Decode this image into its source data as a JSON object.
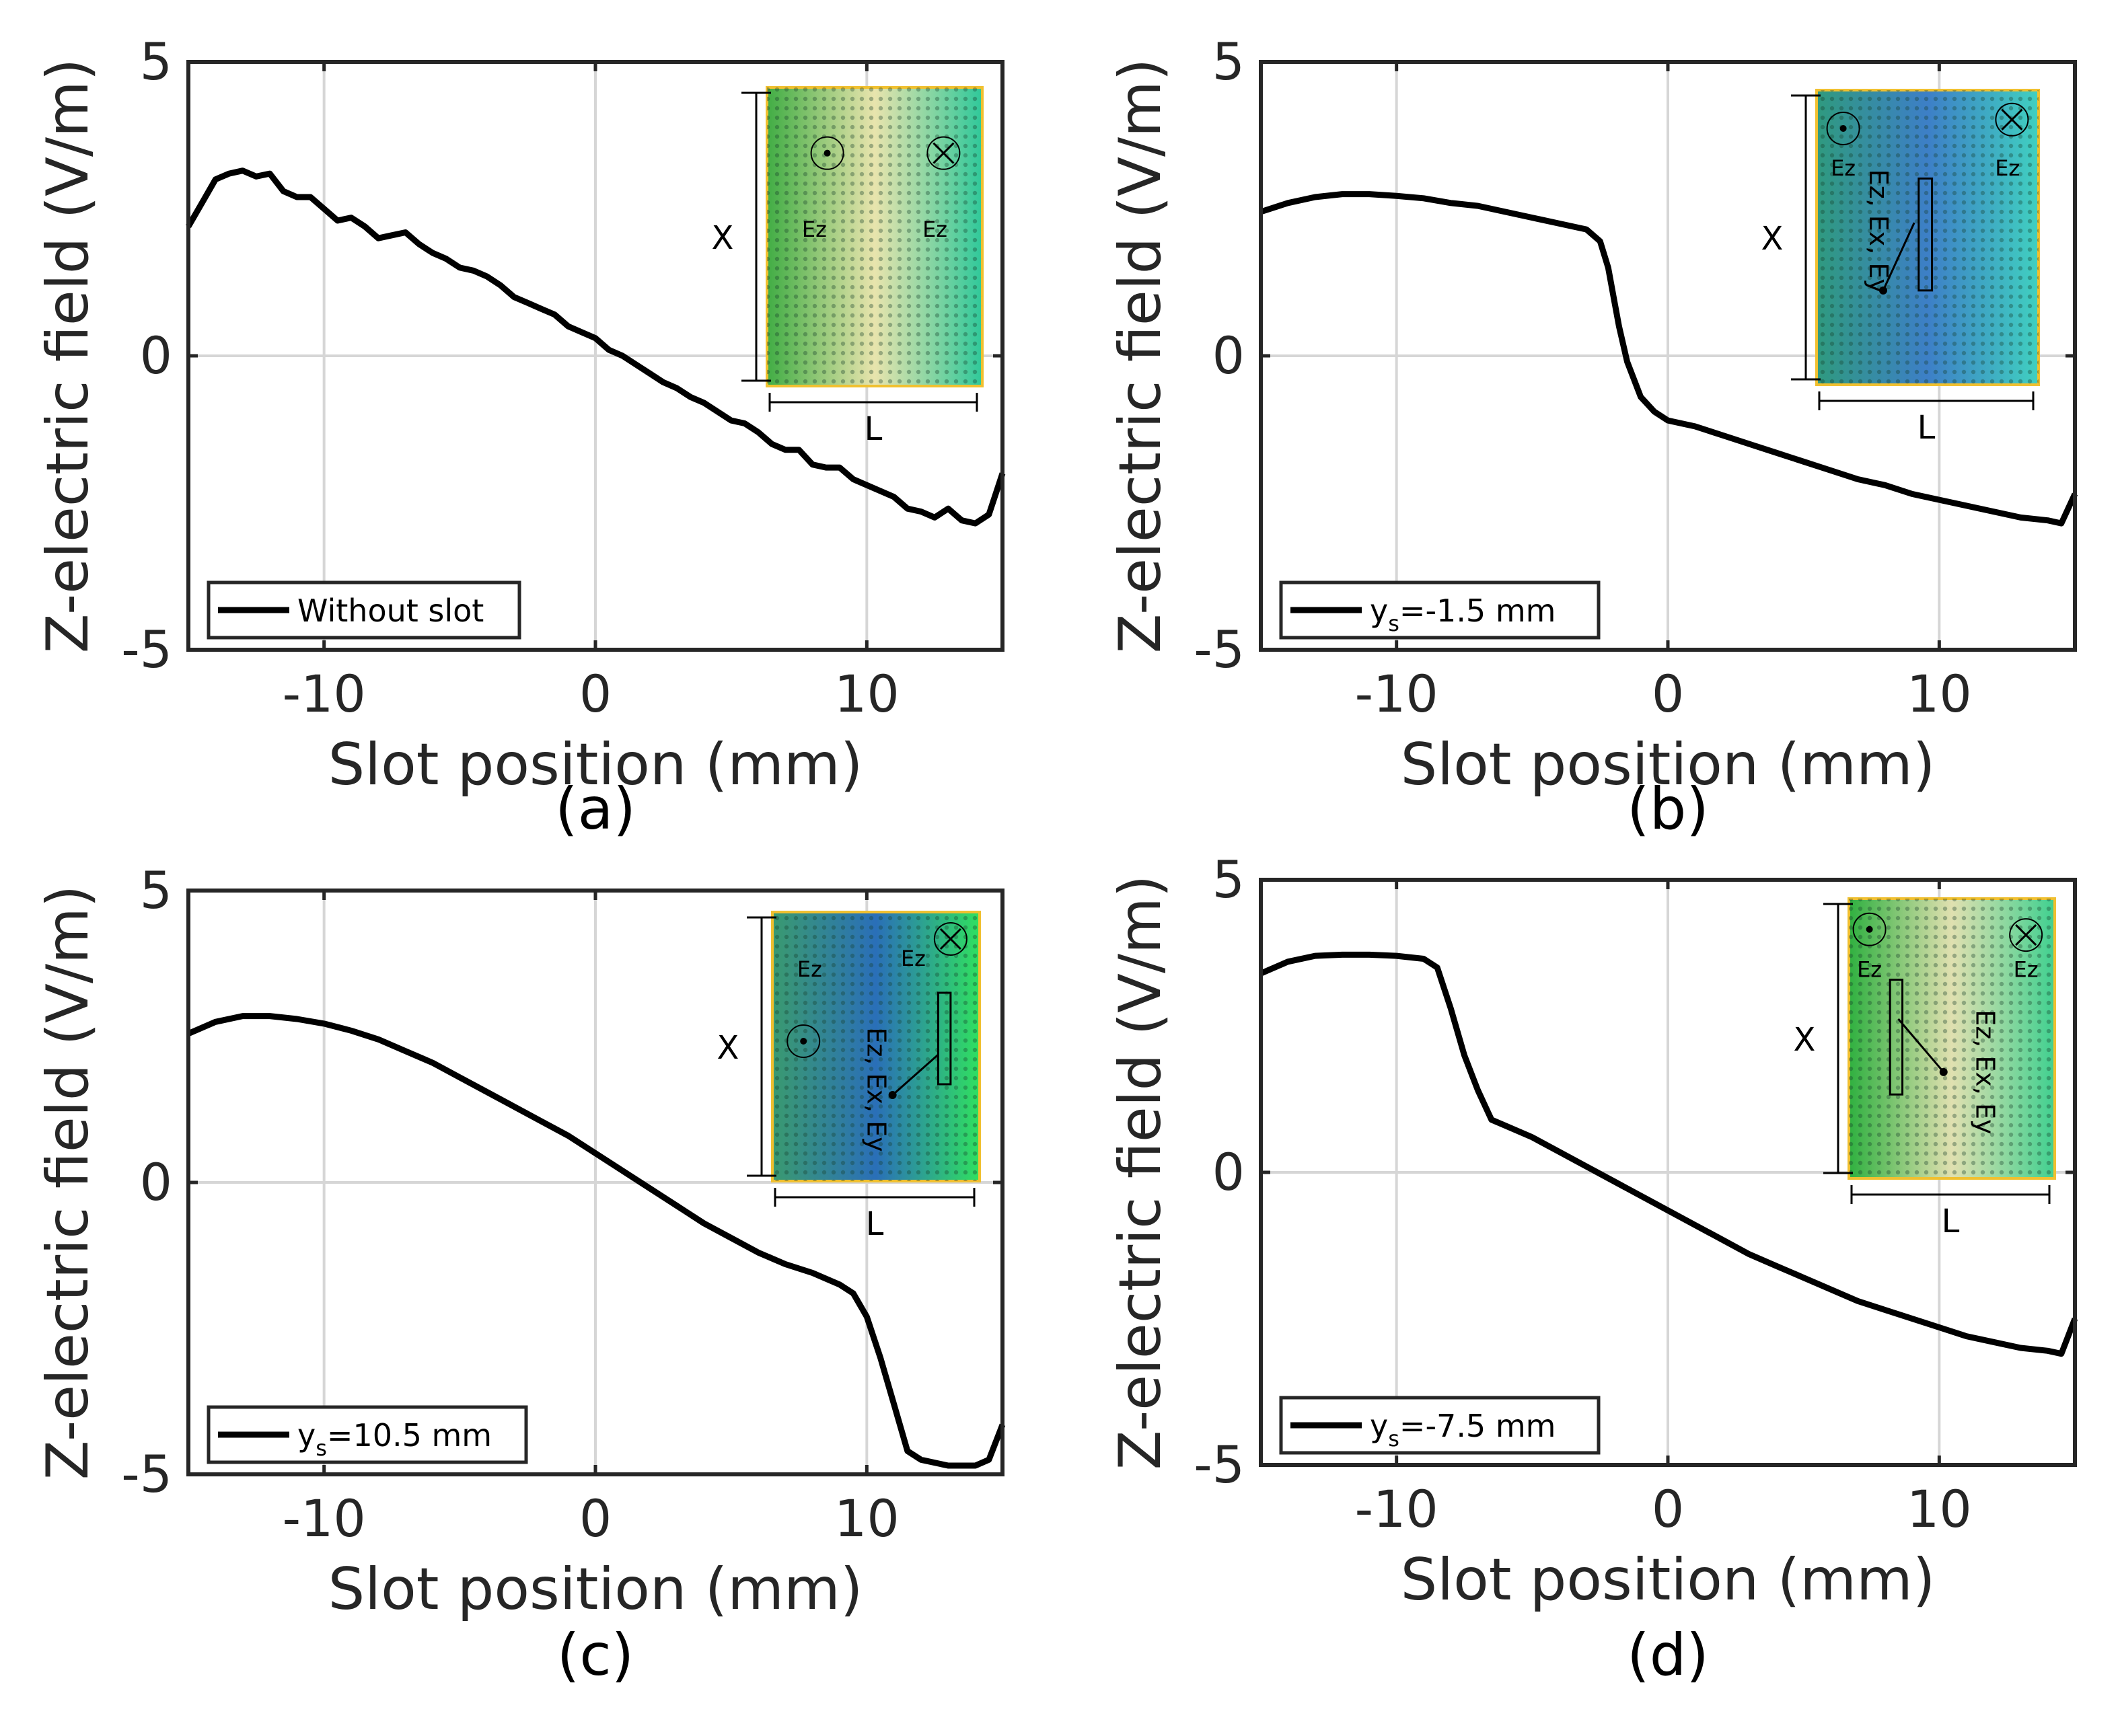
{
  "chart_data": [
    {
      "type": "line",
      "panel_label": "(a)",
      "xlabel": "Slot position (mm)",
      "ylabel": "Z-electric field (V/m)",
      "xlim": [
        -15,
        15
      ],
      "ylim": [
        -5,
        5
      ],
      "xticks": [
        -10,
        0,
        10
      ],
      "yticks": [
        -5,
        0,
        5
      ],
      "grid": true,
      "legend_position": "bottom-left",
      "series": [
        {
          "name": "Without slot",
          "legend_main": "Without slot",
          "legend_sub": "",
          "legend_tail": "",
          "x": [
            -15,
            -14.5,
            -14,
            -13.5,
            -13,
            -12.5,
            -12,
            -11.5,
            -11,
            -10.5,
            -10,
            -9.5,
            -9,
            -8.5,
            -8,
            -7.5,
            -7,
            -6.5,
            -6,
            -5.5,
            -5,
            -4.5,
            -4,
            -3.5,
            -3,
            -2.5,
            -2,
            -1.5,
            -1,
            -0.5,
            0,
            0.5,
            1,
            1.5,
            2,
            2.5,
            3,
            3.5,
            4,
            4.5,
            5,
            5.5,
            6,
            6.5,
            7,
            7.5,
            8,
            8.5,
            9,
            9.5,
            10,
            10.5,
            11,
            11.5,
            12,
            12.5,
            13,
            13.5,
            14,
            14.5,
            15
          ],
          "y": [
            2.2,
            2.6,
            3.0,
            3.1,
            3.15,
            3.05,
            3.1,
            2.8,
            2.7,
            2.7,
            2.5,
            2.3,
            2.35,
            2.2,
            2.0,
            2.05,
            2.1,
            1.9,
            1.75,
            1.65,
            1.5,
            1.45,
            1.35,
            1.2,
            1.0,
            0.9,
            0.8,
            0.7,
            0.5,
            0.4,
            0.3,
            0.1,
            0.0,
            -0.15,
            -0.3,
            -0.45,
            -0.55,
            -0.7,
            -0.8,
            -0.95,
            -1.1,
            -1.15,
            -1.3,
            -1.5,
            -1.6,
            -1.6,
            -1.85,
            -1.9,
            -1.9,
            -2.1,
            -2.2,
            -2.3,
            -2.4,
            -2.6,
            -2.65,
            -2.75,
            -2.6,
            -2.8,
            -2.85,
            -2.7,
            -2.0
          ]
        }
      ],
      "inset": {
        "background": [
          "#41ad45",
          "#e8e4ad",
          "#2fc89a"
        ],
        "labels": [
          "Ez",
          "Ez"
        ],
        "dim_x": "X",
        "dim_l": "L",
        "slot_labels": []
      }
    },
    {
      "type": "line",
      "panel_label": "(b)",
      "xlabel": "Slot position (mm)",
      "ylabel": "Z-electric field (V/m)",
      "xlim": [
        -15,
        15
      ],
      "ylim": [
        -5,
        5
      ],
      "xticks": [
        -10,
        0,
        10
      ],
      "yticks": [
        -5,
        0,
        5
      ],
      "grid": true,
      "legend_position": "bottom-left",
      "series": [
        {
          "name": "ys=-1.5 mm",
          "legend_main": "y",
          "legend_sub": "s",
          "legend_tail": "=-1.5 mm",
          "x": [
            -15,
            -14,
            -13,
            -12,
            -11,
            -10,
            -9,
            -8,
            -7,
            -6,
            -5,
            -4,
            -3,
            -2.5,
            -2.2,
            -2,
            -1.8,
            -1.5,
            -1,
            -0.5,
            0,
            1,
            2,
            3,
            4,
            5,
            6,
            7,
            8,
            9,
            10,
            11,
            12,
            13,
            14,
            14.5,
            15
          ],
          "y": [
            2.45,
            2.6,
            2.7,
            2.75,
            2.75,
            2.72,
            2.68,
            2.6,
            2.55,
            2.45,
            2.35,
            2.25,
            2.15,
            1.95,
            1.5,
            1.0,
            0.5,
            -0.1,
            -0.7,
            -0.95,
            -1.1,
            -1.2,
            -1.35,
            -1.5,
            -1.65,
            -1.8,
            -1.95,
            -2.1,
            -2.2,
            -2.35,
            -2.45,
            -2.55,
            -2.65,
            -2.75,
            -2.8,
            -2.85,
            -2.35
          ]
        }
      ],
      "inset": {
        "background": [
          "#2f9a7f",
          "#3d7fc7",
          "#40d0c0"
        ],
        "labels": [
          "Ez",
          "Ez"
        ],
        "dim_x": "X",
        "dim_l": "L",
        "slot_labels": [
          "Ez, Ex, Ey"
        ]
      }
    },
    {
      "type": "line",
      "panel_label": "(c)",
      "xlabel": "Slot position (mm)",
      "ylabel": "Z-electric field (V/m)",
      "xlim": [
        -15,
        15
      ],
      "ylim": [
        -5,
        5
      ],
      "xticks": [
        -10,
        0,
        10
      ],
      "yticks": [
        -5,
        0,
        5
      ],
      "grid": true,
      "legend_position": "bottom-left",
      "series": [
        {
          "name": "ys=10.5 mm",
          "legend_main": "y",
          "legend_sub": "s",
          "legend_tail": "=10.5 mm",
          "x": [
            -15,
            -14,
            -13,
            -12,
            -11,
            -10,
            -9,
            -8,
            -7,
            -6,
            -5,
            -4,
            -3,
            -2,
            -1,
            0,
            1,
            2,
            3,
            4,
            5,
            6,
            7,
            8,
            9,
            9.5,
            10,
            10.5,
            11,
            11.5,
            12,
            13,
            14,
            14.5,
            15
          ],
          "y": [
            2.55,
            2.75,
            2.85,
            2.85,
            2.8,
            2.72,
            2.6,
            2.45,
            2.25,
            2.05,
            1.8,
            1.55,
            1.3,
            1.05,
            0.8,
            0.5,
            0.2,
            -0.1,
            -0.4,
            -0.7,
            -0.95,
            -1.2,
            -1.4,
            -1.55,
            -1.75,
            -1.9,
            -2.3,
            -3.0,
            -3.8,
            -4.6,
            -4.75,
            -4.85,
            -4.85,
            -4.75,
            -4.15
          ]
        }
      ],
      "inset": {
        "background": [
          "#3a9a70",
          "#2a6fb8",
          "#30e060"
        ],
        "labels": [
          "Ez",
          "Ez"
        ],
        "dim_x": "X",
        "dim_l": "L",
        "slot_labels": [
          "Ez, Ex, Ey"
        ]
      }
    },
    {
      "type": "line",
      "panel_label": "(d)",
      "xlabel": "Slot position (mm)",
      "ylabel": "Z-electric field (V/m)",
      "xlim": [
        -15,
        15
      ],
      "ylim": [
        -5,
        5
      ],
      "xticks": [
        -10,
        0,
        10
      ],
      "yticks": [
        -5,
        0,
        5
      ],
      "grid": true,
      "legend_position": "bottom-left",
      "series": [
        {
          "name": "ys=-7.5 mm",
          "legend_main": "y",
          "legend_sub": "s",
          "legend_tail": "=-7.5 mm",
          "x": [
            -15,
            -14,
            -13,
            -12,
            -11,
            -10,
            -9,
            -8.5,
            -8,
            -7.5,
            -7,
            -6.5,
            -6,
            -5,
            -4,
            -3,
            -2,
            -1,
            0,
            1,
            2,
            3,
            4,
            5,
            6,
            7,
            8,
            9,
            10,
            11,
            12,
            13,
            14,
            14.5,
            15
          ],
          "y": [
            3.4,
            3.6,
            3.7,
            3.72,
            3.72,
            3.7,
            3.65,
            3.5,
            2.8,
            2.0,
            1.4,
            0.9,
            0.8,
            0.6,
            0.35,
            0.1,
            -0.15,
            -0.4,
            -0.65,
            -0.9,
            -1.15,
            -1.4,
            -1.6,
            -1.8,
            -2.0,
            -2.2,
            -2.35,
            -2.5,
            -2.65,
            -2.8,
            -2.9,
            -3.0,
            -3.05,
            -3.1,
            -2.5
          ]
        }
      ],
      "inset": {
        "background": [
          "#2fb040",
          "#e0e0b0",
          "#40d090"
        ],
        "labels": [
          "Ez",
          "Ez"
        ],
        "dim_x": "X",
        "dim_l": "L",
        "slot_labels": [
          "Ez, Ex, Ey"
        ]
      }
    }
  ]
}
